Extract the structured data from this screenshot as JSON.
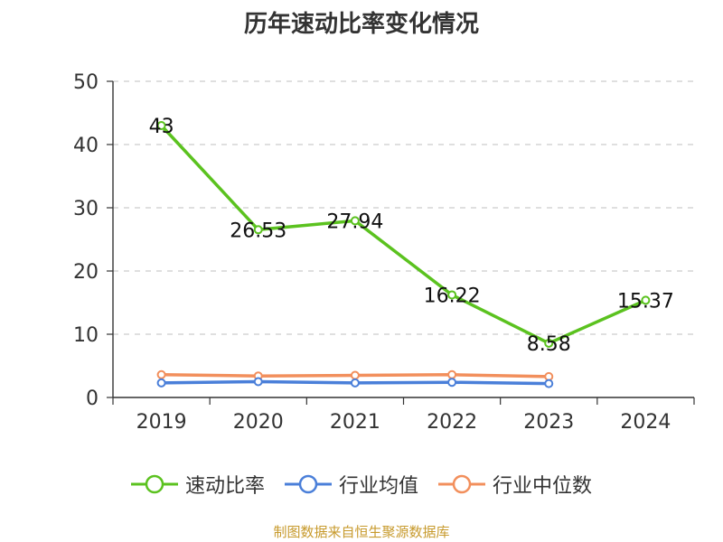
{
  "title": "历年速动比率变化情况",
  "source_note": "制图数据来自恒生聚源数据库",
  "colors": {
    "series_1": "#5bc21f",
    "series_2": "#4a7fd9",
    "series_3": "#f28f5c",
    "grid": "#cccccc",
    "axis": "#333333",
    "title": "#333333",
    "source": "#c79a2c"
  },
  "chart_data": {
    "type": "line",
    "title": "历年速动比率变化情况",
    "xlabel": "",
    "ylabel": "",
    "categories": [
      "2019",
      "2020",
      "2021",
      "2022",
      "2023",
      "2024"
    ],
    "ylim": [
      0,
      50
    ],
    "yticks": [
      0,
      10,
      20,
      30,
      40,
      50
    ],
    "grid": "horizontal dashed",
    "legend_position": "bottom",
    "series": [
      {
        "name": "速动比率",
        "values": [
          43,
          26.53,
          27.94,
          16.22,
          8.58,
          15.37
        ],
        "labels": [
          "43",
          "26.53",
          "27.94",
          "16.22",
          "8.58",
          "15.37"
        ],
        "color": "#5bc21f"
      },
      {
        "name": "行业均值",
        "values": [
          2.3,
          2.5,
          2.3,
          2.4,
          2.2,
          null
        ],
        "color": "#4a7fd9"
      },
      {
        "name": "行业中位数",
        "values": [
          3.6,
          3.4,
          3.5,
          3.6,
          3.3,
          null
        ],
        "color": "#f28f5c"
      }
    ]
  }
}
